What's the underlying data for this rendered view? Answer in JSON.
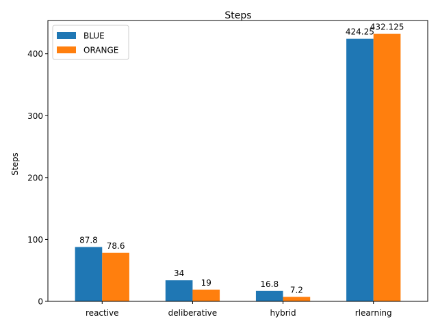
{
  "chart_data": {
    "type": "bar",
    "title": "Steps",
    "xlabel": "",
    "ylabel": "Steps",
    "categories": [
      "reactive",
      "deliberative",
      "hybrid",
      "rlearning"
    ],
    "series": [
      {
        "name": "BLUE",
        "values": [
          87.8,
          34,
          16.8,
          424.25
        ],
        "labels": [
          "87.8",
          "34",
          "16.8",
          "424.25"
        ],
        "color": "#1f77b4"
      },
      {
        "name": "ORANGE",
        "values": [
          78.6,
          19,
          7.2,
          432.125
        ],
        "labels": [
          "78.6",
          "19",
          "7.2",
          "432.125"
        ],
        "color": "#ff7f0e"
      }
    ],
    "ylim": [
      0,
      453.73
    ],
    "yticks": [
      0,
      100,
      200,
      300,
      400
    ],
    "ytick_labels": [
      "0",
      "100",
      "200",
      "300",
      "400"
    ],
    "grid": false,
    "legend": "top-left"
  }
}
